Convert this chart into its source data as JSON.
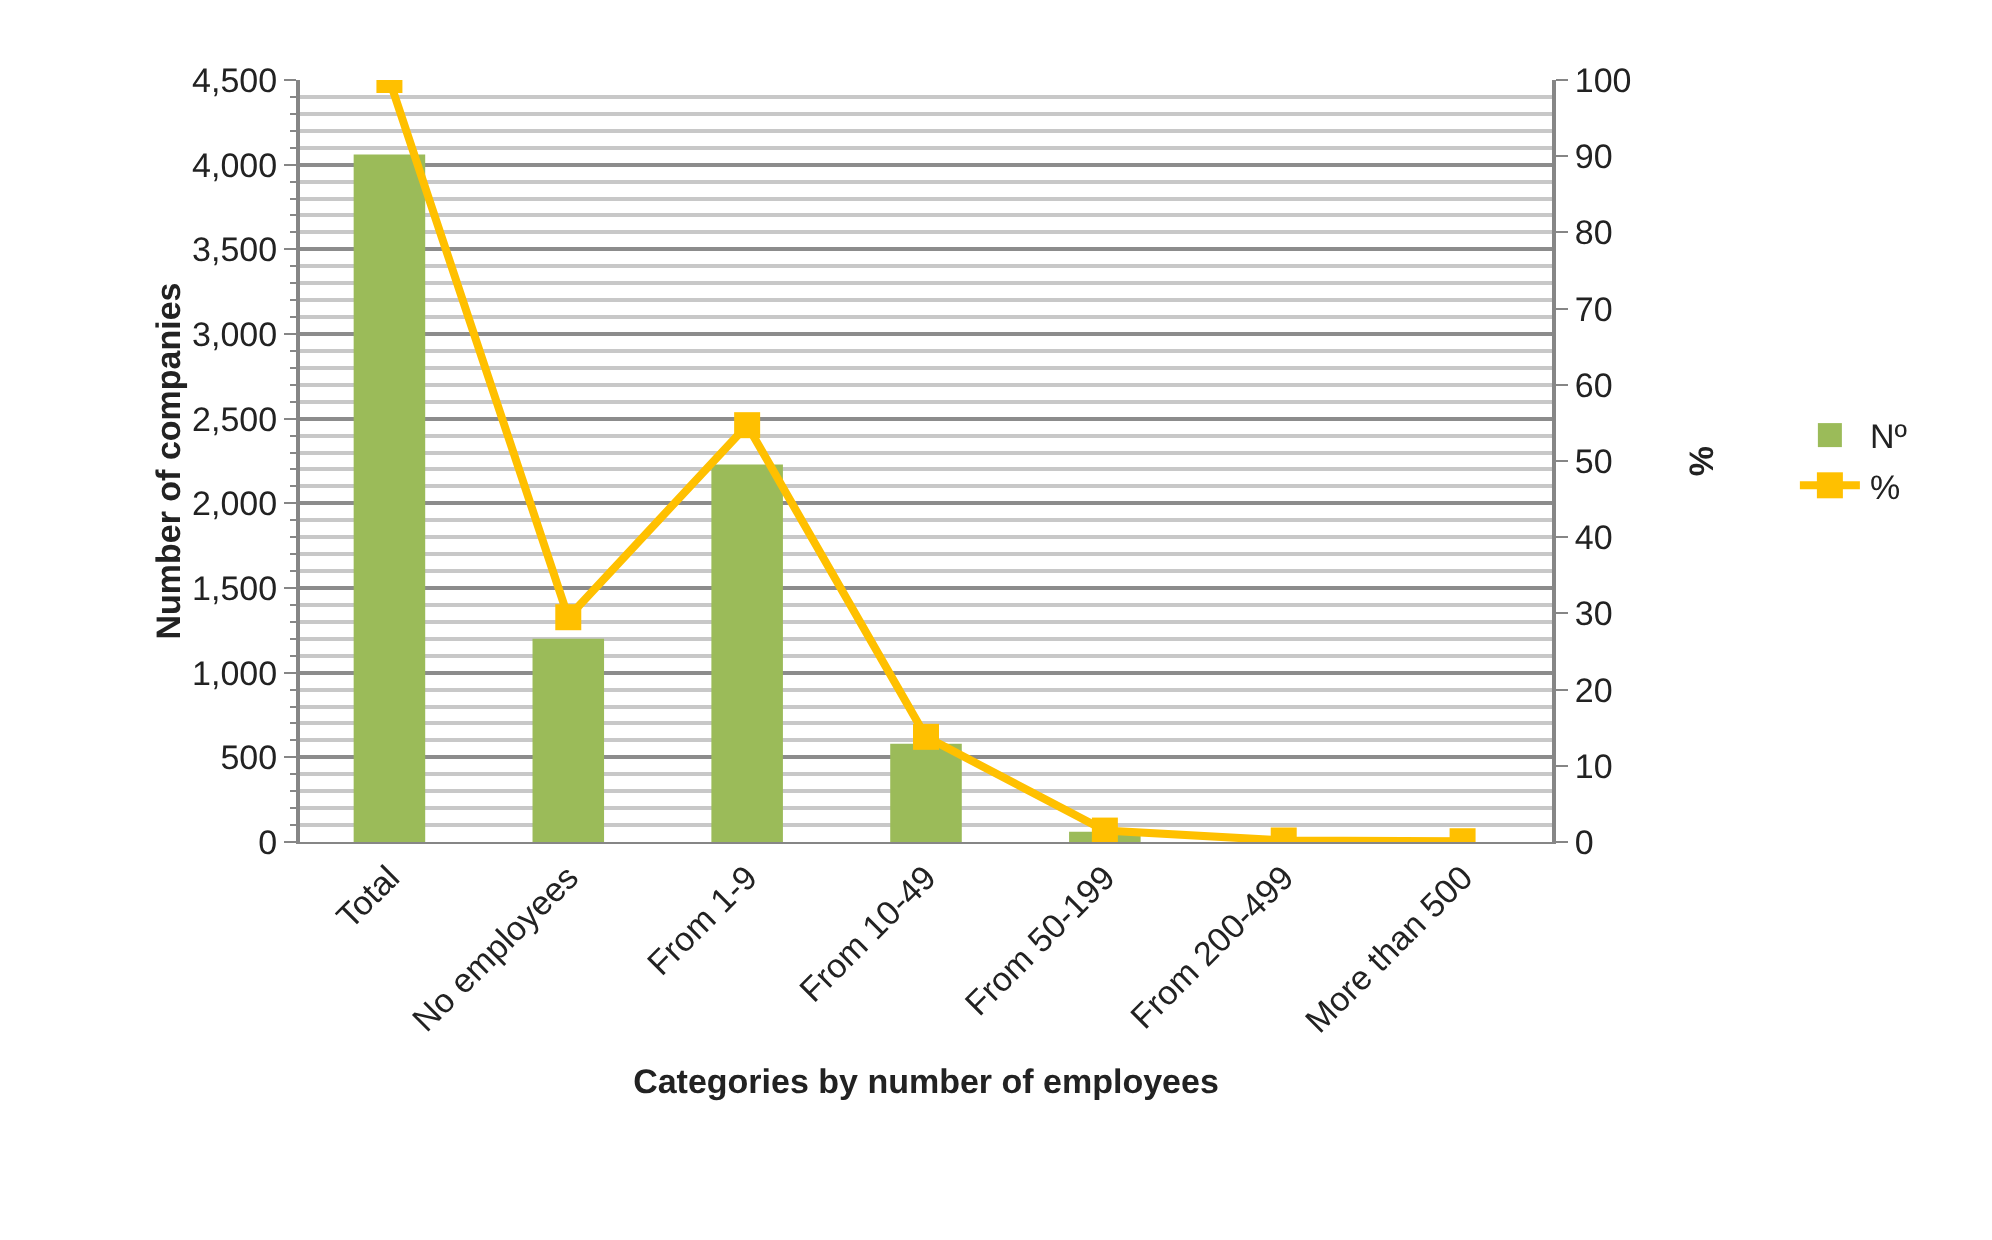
{
  "chart_data": {
    "type": "bar",
    "xlabel": "Categories by number of employees",
    "ylabel": "Number of companies",
    "y2label": "%",
    "categories": [
      "Total",
      "No employees",
      "From 1-9",
      "From 10-49",
      "From 50-199",
      "From 200-499",
      "More than 500"
    ],
    "series": [
      {
        "name": "Nº",
        "color": "#9bbb59",
        "values": [
          4060,
          1200,
          2230,
          580,
          60,
          10,
          0
        ]
      },
      {
        "name": "%",
        "type": "line",
        "axis": "y2",
        "color": "#ffc000",
        "marker": "square",
        "line_style": "solid",
        "values": [
          100,
          29.5,
          54.7,
          13.8,
          1.5,
          0.2,
          0.1
        ]
      }
    ],
    "ylim": [
      0,
      4500
    ],
    "yticks": [
      0,
      500,
      {
        "value": 1000,
        "label": "1,000"
      },
      {
        "value": 1500,
        "label": "1,500"
      },
      {
        "value": 2000,
        "label": "2,000"
      },
      {
        "value": 2500,
        "label": "2,500"
      },
      {
        "value": 3000,
        "label": "3,000"
      },
      {
        "value": 3500,
        "label": "3,500"
      },
      {
        "value": 4000,
        "label": "4,000"
      },
      {
        "value": 4500,
        "label": "4,500"
      }
    ],
    "y2lim": [
      0,
      100
    ],
    "y2ticks": [
      0,
      10,
      20,
      30,
      40,
      50,
      60,
      70,
      80,
      90,
      100
    ],
    "grid": "y",
    "legend": "right"
  }
}
